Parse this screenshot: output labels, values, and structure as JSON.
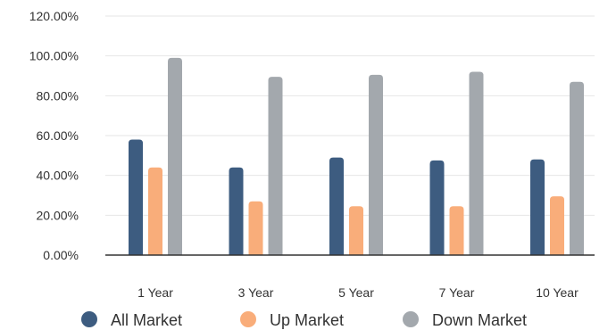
{
  "chart_data": {
    "type": "bar",
    "title": "",
    "xlabel": "",
    "ylabel": "",
    "ylim": [
      0,
      120
    ],
    "yticks": [
      0,
      20,
      40,
      60,
      80,
      100,
      120
    ],
    "ytick_labels": [
      "0.00%",
      "20.00%",
      "40.00%",
      "60.00%",
      "80.00%",
      "100.00%",
      "120.00%"
    ],
    "categories": [
      "1 Year",
      "3 Year",
      "5 Year",
      "7 Year",
      "10 Year"
    ],
    "grid": true,
    "legend_position": "bottom",
    "series": [
      {
        "name": "All Market",
        "color": "#3d5c80",
        "values": [
          58,
          44,
          49,
          47.5,
          48
        ]
      },
      {
        "name": "Up Market",
        "color": "#f9ad7a",
        "values": [
          44,
          27,
          24.5,
          24.5,
          29.5
        ]
      },
      {
        "name": "Down Market",
        "color": "#a3a8ad",
        "values": [
          99,
          89.5,
          90.5,
          92,
          87
        ]
      }
    ]
  }
}
